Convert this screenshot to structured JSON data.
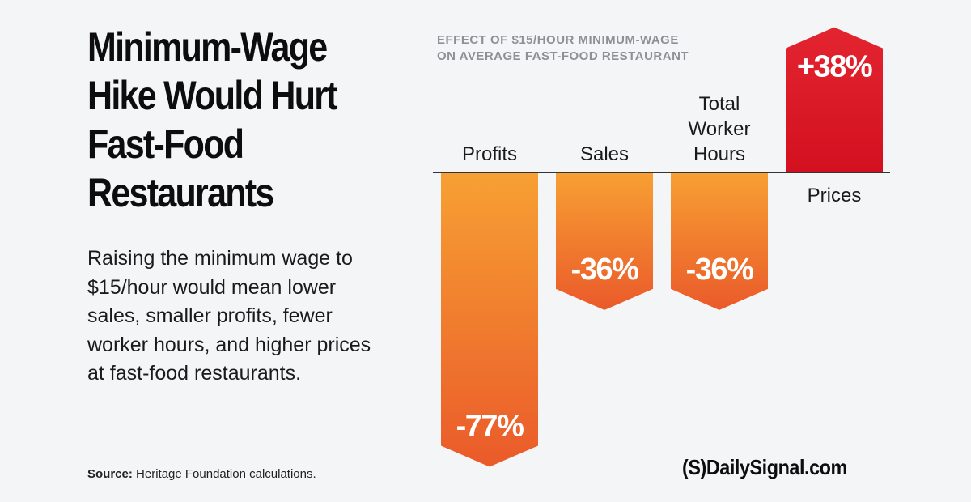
{
  "headline": "Minimum-Wage\nHike Would Hurt\nFast-Food\nRestaurants",
  "description": "Raising the minimum wage to $15/hour would mean lower sales, smaller profits, fewer worker hours, and higher prices at fast-food restaurants.",
  "source": {
    "label": "Source:",
    "text": " Heritage Foundation calculations."
  },
  "logo_text": "(S)DailySignal.com",
  "chart_data": {
    "type": "bar",
    "title": "EFFECT OF $15/HOUR MINIMUM-WAGE\nON AVERAGE FAST-FOOD RESTAURANT",
    "categories": [
      "Profits",
      "Sales",
      "Total\nWorker\nHours",
      "Prices"
    ],
    "values": [
      -77,
      -36,
      -36,
      38
    ],
    "data_labels": [
      "-77%",
      "-36%",
      "-36%",
      "+38%"
    ],
    "units": "percent change",
    "colors": {
      "negative_top": "#f7a033",
      "negative_bottom": "#ea5a2a",
      "positive_top": "#e32530",
      "positive_bottom": "#d3101f"
    },
    "grid": false,
    "legend": "none"
  }
}
